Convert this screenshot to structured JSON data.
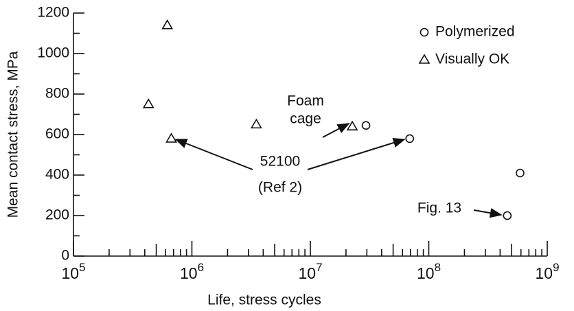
{
  "chart_data": {
    "type": "scatter",
    "x_label": "Life, stress cycles",
    "y_label": "Mean contact stress, MPa",
    "x_scale": "log",
    "xlim": [
      100000,
      1000000000
    ],
    "ylim": [
      0,
      1200
    ],
    "xticks": [
      {
        "value": 100000,
        "label": "10",
        "exponent": "5"
      },
      {
        "value": 1000000,
        "label": "10",
        "exponent": "6"
      },
      {
        "value": 10000000,
        "label": "10",
        "exponent": "7"
      },
      {
        "value": 100000000,
        "label": "10",
        "exponent": "8"
      },
      {
        "value": 1000000000,
        "label": "10",
        "exponent": "9"
      }
    ],
    "yticks": [
      0,
      200,
      400,
      600,
      800,
      1000,
      1200
    ],
    "legend": "upper right",
    "series": [
      {
        "name": "Polymerized",
        "marker": "circle",
        "color": "#111",
        "x": [
          29500000,
          69000000,
          590000000,
          460000000
        ],
        "values": [
          645,
          580,
          410,
          200
        ]
      },
      {
        "name": "Visually OK",
        "marker": "triangle",
        "color": "#111",
        "x": [
          620000,
          430000,
          670000,
          3500000,
          22600000
        ],
        "values": [
          1140,
          750,
          580,
          650,
          640
        ]
      }
    ],
    "annotations": [
      {
        "text": [
          "Foam",
          "cage"
        ]
      },
      {
        "text": [
          "52100",
          "(Ref 2)"
        ]
      },
      {
        "text": [
          "Fig. 13"
        ]
      }
    ]
  }
}
